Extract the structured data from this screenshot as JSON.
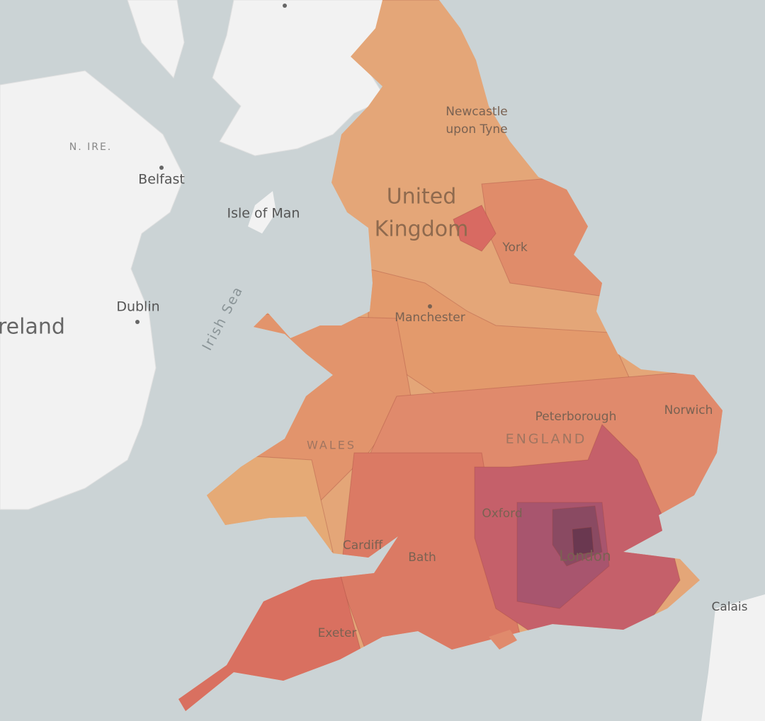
{
  "labels": [
    "Newcastle",
    "upon Tyne",
    "United",
    "Kingdom",
    "York",
    "Manchester",
    "Peterborough",
    "Norwich",
    "WALES",
    "ENGLAND",
    "Oxford",
    "London",
    "Cardiff",
    "Bath",
    "Exeter",
    "Isle of Man",
    "Dublin",
    "Belfast",
    "N. IRE.",
    "Ireland",
    "Irish Sea",
    "Calais"
  ]
}
